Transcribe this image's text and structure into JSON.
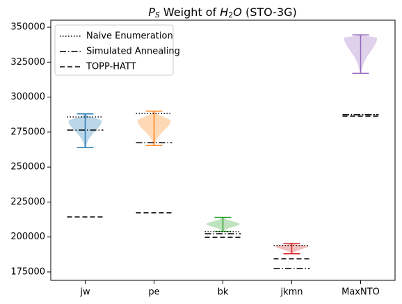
{
  "chart_data": {
    "type": "violin",
    "title": [
      "P",
      "S",
      " Weight of ",
      "H",
      "2",
      "O",
      " (STO-3G)"
    ],
    "categories": [
      "jw",
      "pe",
      "bk",
      "jkmn",
      "MaxNTO"
    ],
    "violins": [
      {
        "color": "#1f77b4",
        "min": 264000,
        "peak": 283000,
        "max": 288000
      },
      {
        "color": "#ff7f0e",
        "min": 265500,
        "peak": 283000,
        "max": 290000
      },
      {
        "color": "#2ca02c",
        "min": 204000,
        "peak": 209300,
        "max": 214000
      },
      {
        "color": "#d62728",
        "min": 188000,
        "peak": 193400,
        "max": 195400
      },
      {
        "color": "#9467bd",
        "min": 317000,
        "peak": 342500,
        "max": 344500
      }
    ],
    "series": [
      {
        "name": "Naive Enumeration",
        "color": "#000000",
        "dash": "dotted",
        "values": [
          285800,
          288300,
          203800,
          193900,
          287400
        ]
      },
      {
        "name": "Simulated Annealing",
        "color": "#000000",
        "dash": "dashdot",
        "values": [
          276400,
          267400,
          202300,
          177500,
          287400
        ]
      },
      {
        "name": "TOPP-HATT",
        "color": "#000000",
        "dash": "dashed",
        "values": [
          214300,
          217300,
          199800,
          184400,
          286400
        ]
      }
    ],
    "ylim": [
      169000,
      355000
    ],
    "yticks": [
      175000,
      200000,
      225000,
      250000,
      275000,
      300000,
      325000,
      350000
    ],
    "legend": "upper left",
    "grid": false
  }
}
